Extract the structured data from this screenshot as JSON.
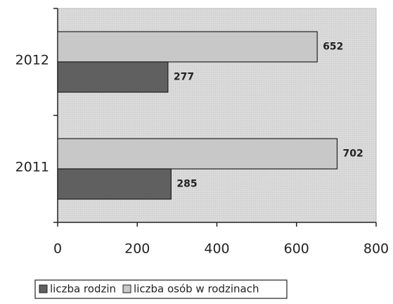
{
  "chart_data": {
    "type": "barh",
    "categories": [
      "2012",
      "2011"
    ],
    "series": [
      {
        "name": "liczba rodzin",
        "color": "#606060",
        "values": [
          277,
          285
        ]
      },
      {
        "name": "liczba osób w rodzinach",
        "color": "#c8c8c8",
        "values": [
          652,
          702
        ]
      }
    ],
    "xlim": [
      0,
      800
    ],
    "xticks": [
      0,
      200,
      400,
      600,
      800
    ],
    "legend": "bottom"
  }
}
